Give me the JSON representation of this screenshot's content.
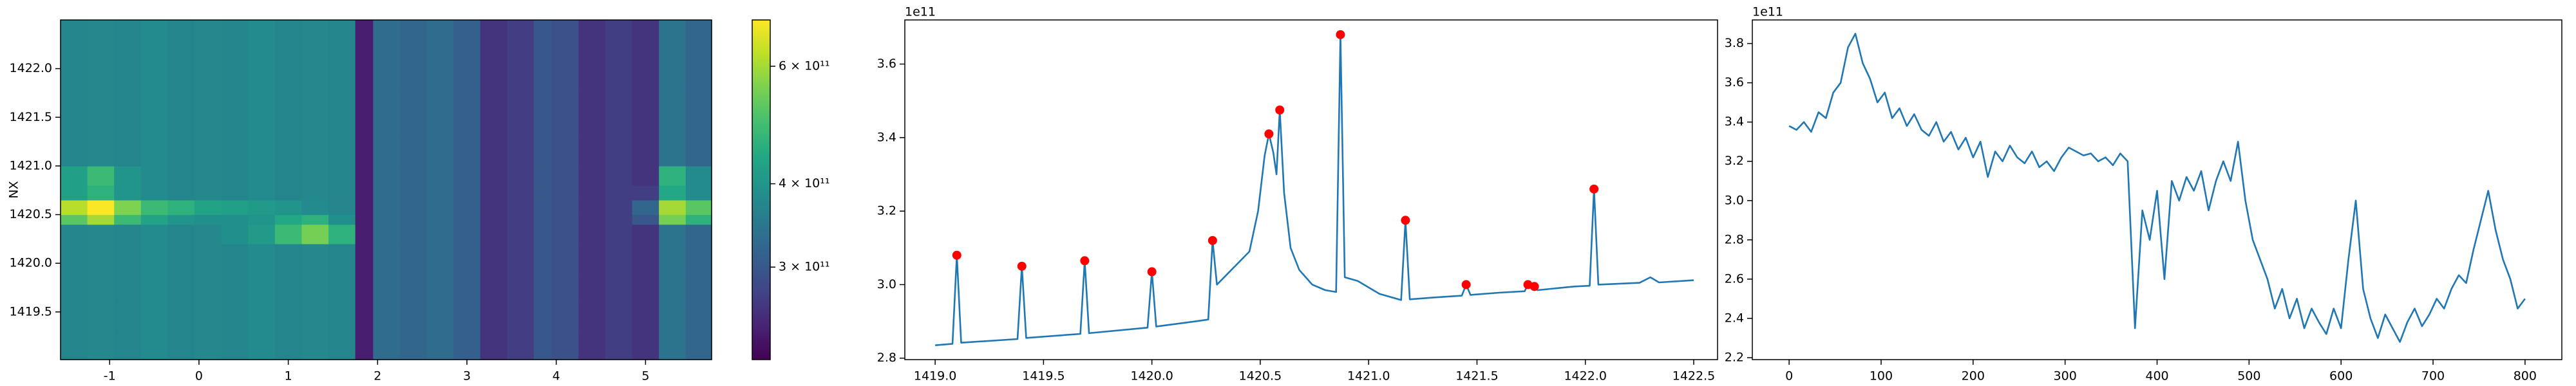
{
  "chart_data": [
    {
      "type": "heatmap",
      "ylabel": "NX",
      "colormap": "viridis",
      "colorscale": "log",
      "xlim": [
        -1.55,
        5.74
      ],
      "ylim": [
        1419.01,
        1422.5
      ],
      "xticks": [
        -1,
        0,
        1,
        2,
        3,
        4,
        5
      ],
      "yticks": [
        1419.5,
        {
          "value": 1420,
          "label": "1420.0"
        },
        1420.5,
        {
          "value": 1421,
          "label": "1421.0"
        },
        1421.5,
        {
          "value": 1422,
          "label": "1422.0"
        }
      ],
      "x": [
        -1.55,
        -1.25,
        -0.95,
        -0.65,
        -0.35,
        -0.05,
        0.25,
        0.55,
        0.85,
        1.15,
        1.45,
        1.75,
        1.95,
        2.25,
        2.55,
        2.85,
        3.15,
        3.45,
        3.75,
        3.95,
        4.25,
        4.55,
        4.85,
        5.15,
        5.45,
        5.74
      ],
      "y": [
        1419.01,
        1419.3,
        1419.6,
        1419.9,
        1420.2,
        1420.4,
        1420.5,
        1420.65,
        1420.8,
        1421.0,
        1421.3,
        1421.8,
        1422.5
      ],
      "z": [
        [
          370000000000.0,
          375000000000.0,
          370000000000.0,
          380000000000.0,
          370000000000.0,
          375000000000.0,
          370000000000.0,
          380000000000.0,
          370000000000.0,
          375000000000.0,
          370000000000.0,
          240000000000.0,
          330000000000.0,
          320000000000.0,
          330000000000.0,
          310000000000.0,
          260000000000.0,
          270000000000.0,
          300000000000.0,
          290000000000.0,
          260000000000.0,
          270000000000.0,
          260000000000.0,
          340000000000.0,
          320000000000.0
        ],
        [
          370000000000.0,
          375000000000.0,
          370000000000.0,
          380000000000.0,
          370000000000.0,
          375000000000.0,
          370000000000.0,
          380000000000.0,
          370000000000.0,
          375000000000.0,
          370000000000.0,
          240000000000.0,
          330000000000.0,
          320000000000.0,
          330000000000.0,
          310000000000.0,
          260000000000.0,
          270000000000.0,
          300000000000.0,
          290000000000.0,
          260000000000.0,
          270000000000.0,
          260000000000.0,
          340000000000.0,
          320000000000.0
        ],
        [
          370000000000.0,
          375000000000.0,
          370000000000.0,
          380000000000.0,
          370000000000.0,
          375000000000.0,
          370000000000.0,
          380000000000.0,
          370000000000.0,
          375000000000.0,
          370000000000.0,
          240000000000.0,
          330000000000.0,
          320000000000.0,
          330000000000.0,
          310000000000.0,
          260000000000.0,
          270000000000.0,
          300000000000.0,
          290000000000.0,
          260000000000.0,
          270000000000.0,
          260000000000.0,
          340000000000.0,
          320000000000.0
        ],
        [
          370000000000.0,
          375000000000.0,
          370000000000.0,
          380000000000.0,
          370000000000.0,
          375000000000.0,
          370000000000.0,
          380000000000.0,
          370000000000.0,
          375000000000.0,
          370000000000.0,
          240000000000.0,
          330000000000.0,
          320000000000.0,
          330000000000.0,
          310000000000.0,
          260000000000.0,
          270000000000.0,
          300000000000.0,
          290000000000.0,
          260000000000.0,
          270000000000.0,
          260000000000.0,
          340000000000.0,
          320000000000.0
        ],
        [
          370000000000.0,
          375000000000.0,
          370000000000.0,
          380000000000.0,
          370000000000.0,
          375000000000.0,
          390000000000.0,
          410000000000.0,
          480000000000.0,
          550000000000.0,
          460000000000.0,
          240000000000.0,
          330000000000.0,
          320000000000.0,
          330000000000.0,
          310000000000.0,
          260000000000.0,
          270000000000.0,
          300000000000.0,
          290000000000.0,
          260000000000.0,
          270000000000.0,
          260000000000.0,
          340000000000.0,
          320000000000.0
        ],
        [
          520000000000.0,
          600000000000.0,
          480000000000.0,
          430000000000.0,
          400000000000.0,
          390000000000.0,
          390000000000.0,
          400000000000.0,
          440000000000.0,
          460000000000.0,
          390000000000.0,
          240000000000.0,
          330000000000.0,
          320000000000.0,
          330000000000.0,
          310000000000.0,
          260000000000.0,
          270000000000.0,
          300000000000.0,
          290000000000.0,
          260000000000.0,
          270000000000.0,
          300000000000.0,
          550000000000.0,
          460000000000.0
        ],
        [
          620000000000.0,
          700000000000.0,
          560000000000.0,
          480000000000.0,
          460000000000.0,
          430000000000.0,
          420000000000.0,
          410000000000.0,
          400000000000.0,
          380000000000.0,
          370000000000.0,
          240000000000.0,
          330000000000.0,
          320000000000.0,
          330000000000.0,
          310000000000.0,
          260000000000.0,
          270000000000.0,
          300000000000.0,
          290000000000.0,
          260000000000.0,
          270000000000.0,
          320000000000.0,
          600000000000.0,
          520000000000.0
        ],
        [
          420000000000.0,
          460000000000.0,
          400000000000.0,
          380000000000.0,
          370000000000.0,
          375000000000.0,
          370000000000.0,
          380000000000.0,
          370000000000.0,
          375000000000.0,
          370000000000.0,
          240000000000.0,
          330000000000.0,
          320000000000.0,
          330000000000.0,
          310000000000.0,
          260000000000.0,
          270000000000.0,
          300000000000.0,
          290000000000.0,
          260000000000.0,
          270000000000.0,
          270000000000.0,
          440000000000.0,
          380000000000.0
        ],
        [
          420000000000.0,
          480000000000.0,
          400000000000.0,
          380000000000.0,
          370000000000.0,
          375000000000.0,
          370000000000.0,
          380000000000.0,
          370000000000.0,
          375000000000.0,
          370000000000.0,
          240000000000.0,
          330000000000.0,
          320000000000.0,
          330000000000.0,
          310000000000.0,
          260000000000.0,
          270000000000.0,
          300000000000.0,
          290000000000.0,
          260000000000.0,
          270000000000.0,
          260000000000.0,
          460000000000.0,
          380000000000.0
        ],
        [
          370000000000.0,
          375000000000.0,
          370000000000.0,
          380000000000.0,
          370000000000.0,
          375000000000.0,
          370000000000.0,
          380000000000.0,
          370000000000.0,
          375000000000.0,
          370000000000.0,
          240000000000.0,
          330000000000.0,
          320000000000.0,
          330000000000.0,
          310000000000.0,
          260000000000.0,
          270000000000.0,
          300000000000.0,
          290000000000.0,
          260000000000.0,
          270000000000.0,
          260000000000.0,
          340000000000.0,
          320000000000.0
        ],
        [
          370000000000.0,
          375000000000.0,
          370000000000.0,
          380000000000.0,
          370000000000.0,
          375000000000.0,
          370000000000.0,
          380000000000.0,
          370000000000.0,
          375000000000.0,
          370000000000.0,
          240000000000.0,
          330000000000.0,
          320000000000.0,
          330000000000.0,
          310000000000.0,
          260000000000.0,
          270000000000.0,
          300000000000.0,
          290000000000.0,
          260000000000.0,
          270000000000.0,
          260000000000.0,
          340000000000.0,
          320000000000.0
        ],
        [
          370000000000.0,
          375000000000.0,
          370000000000.0,
          380000000000.0,
          370000000000.0,
          375000000000.0,
          370000000000.0,
          380000000000.0,
          370000000000.0,
          375000000000.0,
          370000000000.0,
          240000000000.0,
          330000000000.0,
          320000000000.0,
          330000000000.0,
          310000000000.0,
          260000000000.0,
          270000000000.0,
          300000000000.0,
          290000000000.0,
          260000000000.0,
          270000000000.0,
          260000000000.0,
          340000000000.0,
          320000000000.0
        ]
      ],
      "clim": [
        218000000000.0,
        704000000000.0
      ],
      "colorbar_ticks": [
        {
          "value": 600000000000.0,
          "label": "6 × 10¹¹"
        },
        {
          "value": 400000000000.0,
          "label": "4 × 10¹¹"
        },
        {
          "value": 300000000000.0,
          "label": "3 × 10¹¹"
        }
      ]
    },
    {
      "type": "line",
      "offset_label": "1e11",
      "xlim": [
        1418.86,
        1422.61
      ],
      "ylim": [
        2.796,
        3.72
      ],
      "xticks": [
        {
          "value": 1419,
          "label": "1419.0"
        },
        1419.5,
        {
          "value": 1420,
          "label": "1420.0"
        },
        1420.5,
        {
          "value": 1421,
          "label": "1421.0"
        },
        1421.5,
        {
          "value": 1422,
          "label": "1422.0"
        },
        1422.5
      ],
      "yticks": [
        2.8,
        {
          "value": 3,
          "label": "3.0"
        },
        3.2,
        3.4,
        3.6
      ],
      "series": [
        {
          "color": "#1f77b4",
          "x": [
            1419.0,
            1419.08,
            1419.1,
            1419.12,
            1419.38,
            1419.4,
            1419.42,
            1419.67,
            1419.69,
            1419.71,
            1419.98,
            1420.0,
            1420.02,
            1420.2,
            1420.26,
            1420.28,
            1420.3,
            1420.35,
            1420.4,
            1420.45,
            1420.49,
            1420.52,
            1420.54,
            1420.56,
            1420.575,
            1420.59,
            1420.61,
            1420.64,
            1420.68,
            1420.74,
            1420.8,
            1420.85,
            1420.87,
            1420.89,
            1420.95,
            1421.05,
            1421.15,
            1421.17,
            1421.19,
            1421.3,
            1421.43,
            1421.45,
            1421.47,
            1421.6,
            1421.72,
            1421.735,
            1421.75,
            1421.765,
            1421.78,
            1421.95,
            1422.02,
            1422.04,
            1422.06,
            1422.25,
            1422.3,
            1422.34,
            1422.5
          ],
          "values": [
            2.835,
            2.839,
            3.08,
            2.842,
            2.852,
            3.05,
            2.855,
            2.866,
            3.065,
            2.868,
            2.883,
            3.035,
            2.886,
            2.9,
            2.905,
            3.12,
            3.0,
            3.03,
            3.06,
            3.09,
            3.2,
            3.35,
            3.41,
            3.36,
            3.3,
            3.475,
            3.25,
            3.1,
            3.04,
            3.0,
            2.985,
            2.98,
            3.68,
            3.02,
            3.01,
            2.975,
            2.958,
            3.175,
            2.96,
            2.965,
            2.97,
            3.0,
            2.972,
            2.978,
            2.982,
            3.0,
            2.99,
            2.995,
            2.985,
            2.995,
            2.997,
            3.26,
            3.0,
            3.005,
            3.02,
            3.006,
            3.012
          ]
        },
        {
          "color": "red",
          "marker": "o",
          "linestyle": "none",
          "x": [
            1419.1,
            1419.4,
            1419.69,
            1420.0,
            1420.28,
            1420.54,
            1420.59,
            1420.87,
            1421.17,
            1421.45,
            1421.735,
            1421.765,
            1422.04
          ],
          "values": [
            3.08,
            3.05,
            3.065,
            3.035,
            3.12,
            3.41,
            3.475,
            3.68,
            3.175,
            3.0,
            3.0,
            2.995,
            3.26
          ]
        }
      ]
    },
    {
      "type": "line",
      "offset_label": "1e11",
      "xlim": [
        -40,
        840
      ],
      "ylim": [
        2.19,
        3.92
      ],
      "xticks": [
        0,
        100,
        200,
        300,
        400,
        500,
        600,
        700,
        800
      ],
      "yticks": [
        2.2,
        2.4,
        2.6,
        2.8,
        {
          "value": 3,
          "label": "3.0"
        },
        3.2,
        3.4,
        3.6,
        3.8
      ],
      "series": [
        {
          "color": "#1f77b4",
          "x": [
            0,
            8,
            16,
            24,
            32,
            40,
            48,
            56,
            64,
            72,
            80,
            88,
            96,
            104,
            112,
            120,
            128,
            136,
            144,
            152,
            160,
            168,
            176,
            184,
            192,
            200,
            208,
            216,
            224,
            232,
            240,
            248,
            256,
            264,
            272,
            280,
            288,
            296,
            304,
            312,
            320,
            328,
            336,
            344,
            352,
            360,
            368,
            376,
            384,
            392,
            400,
            408,
            416,
            424,
            432,
            440,
            448,
            456,
            464,
            472,
            480,
            488,
            496,
            504,
            512,
            520,
            528,
            536,
            544,
            552,
            560,
            568,
            576,
            584,
            592,
            600,
            608,
            616,
            624,
            632,
            640,
            648,
            656,
            664,
            672,
            680,
            688,
            696,
            704,
            712,
            720,
            728,
            736,
            744,
            752,
            760,
            768,
            776,
            784,
            792,
            800
          ],
          "values": [
            3.38,
            3.36,
            3.4,
            3.35,
            3.45,
            3.42,
            3.55,
            3.6,
            3.78,
            3.85,
            3.7,
            3.62,
            3.5,
            3.55,
            3.42,
            3.47,
            3.38,
            3.44,
            3.36,
            3.33,
            3.4,
            3.3,
            3.35,
            3.26,
            3.32,
            3.22,
            3.3,
            3.12,
            3.25,
            3.2,
            3.28,
            3.22,
            3.19,
            3.25,
            3.17,
            3.2,
            3.15,
            3.22,
            3.27,
            3.25,
            3.23,
            3.24,
            3.2,
            3.22,
            3.18,
            3.24,
            3.2,
            2.35,
            2.95,
            2.8,
            3.05,
            2.6,
            3.1,
            3.0,
            3.12,
            3.05,
            3.15,
            2.95,
            3.1,
            3.2,
            3.1,
            3.3,
            3.0,
            2.8,
            2.7,
            2.6,
            2.45,
            2.55,
            2.4,
            2.5,
            2.35,
            2.45,
            2.38,
            2.32,
            2.45,
            2.35,
            2.7,
            3.0,
            2.55,
            2.4,
            2.3,
            2.42,
            2.35,
            2.28,
            2.38,
            2.45,
            2.36,
            2.42,
            2.5,
            2.45,
            2.55,
            2.62,
            2.58,
            2.75,
            2.9,
            3.05,
            2.85,
            2.7,
            2.6,
            2.45,
            2.5
          ]
        }
      ]
    }
  ]
}
